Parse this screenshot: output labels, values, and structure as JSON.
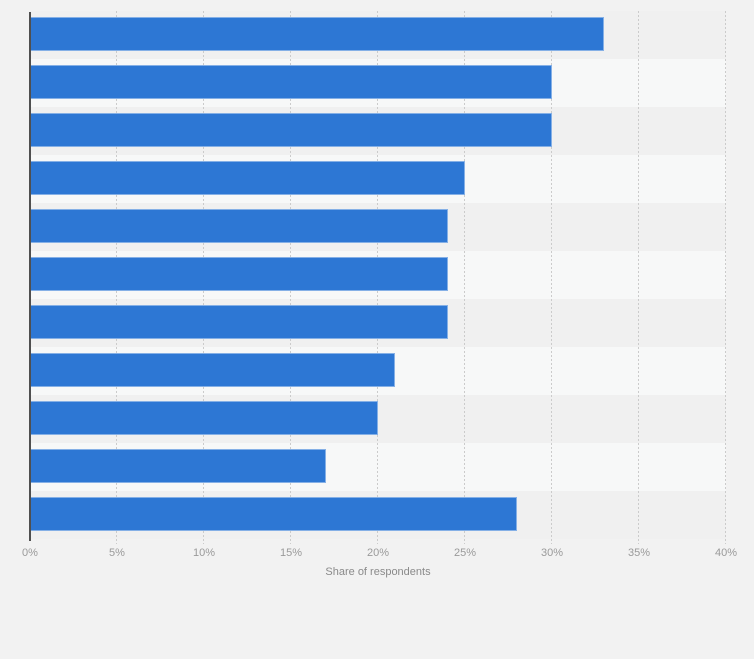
{
  "page": {
    "background": "#f2f2f2"
  },
  "chart_data": {
    "type": "bar",
    "orientation": "horizontal",
    "title": "",
    "xlabel": "Share of respondents",
    "ylabel": "",
    "unit": "%",
    "xlim": [
      0,
      40
    ],
    "x_tick_step": 5,
    "x_ticks": [
      "0%",
      "5%",
      "10%",
      "15%",
      "20%",
      "25%",
      "30%",
      "35%",
      "40%"
    ],
    "categories": [
      "",
      "",
      "",
      "",
      "",
      "",
      "",
      "",
      "",
      "",
      ""
    ],
    "values": [
      33,
      30,
      30,
      25,
      24,
      24,
      24,
      21,
      20,
      17,
      28
    ],
    "grid": "vertical-dotted",
    "legend": "none",
    "row_background": "alternating",
    "colors": {
      "bar": "#2d77d4",
      "row_band_dark": "#f0f0f0",
      "row_band_light": "#f7f8f8",
      "gridline": "#cbcbcb",
      "axis_line": "#4f4f4f",
      "tick_text": "#9a9a9a",
      "axis_label_text": "#8a8a8a",
      "page_background": "#f2f2f2"
    }
  }
}
